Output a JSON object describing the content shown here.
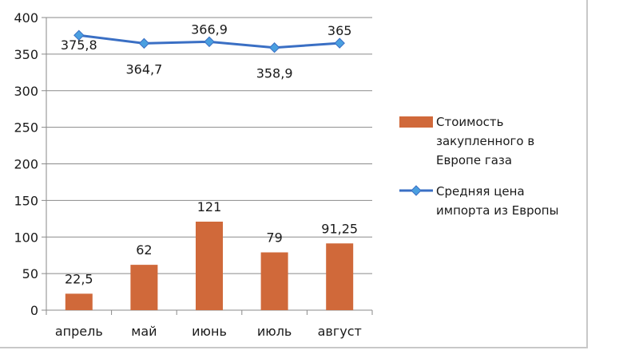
{
  "chart_data": {
    "type": "bar",
    "categories": [
      "апрель",
      "май",
      "июнь",
      "июль",
      "август"
    ],
    "series": [
      {
        "name": "Стоимость закупленного в Европе газа",
        "type": "bar",
        "color": "#d0693a",
        "values": [
          22.5,
          62,
          121,
          79,
          91.25
        ],
        "labels": [
          "22,5",
          "62",
          "121",
          "79",
          "91,25"
        ]
      },
      {
        "name": "Средняя цена импорта из Европы",
        "type": "line",
        "color": "#3a6fc4",
        "marker_color": "#4a9fe0",
        "values": [
          375.8,
          364.7,
          366.9,
          358.9,
          365
        ],
        "labels": [
          "375,8",
          "364,7",
          "366,9",
          "358,9",
          "365"
        ]
      }
    ],
    "ylim": [
      0,
      400
    ],
    "yticks": [
      "0",
      "50",
      "100",
      "150",
      "200",
      "250",
      "300",
      "350",
      "400"
    ],
    "grid": true,
    "legend_position": "right",
    "legend": [
      {
        "lines": [
          "Стоимость",
          "закупленного в",
          "Европе газа"
        ]
      },
      {
        "lines": [
          "Средняя цена",
          "импорта из Европы"
        ]
      }
    ]
  }
}
